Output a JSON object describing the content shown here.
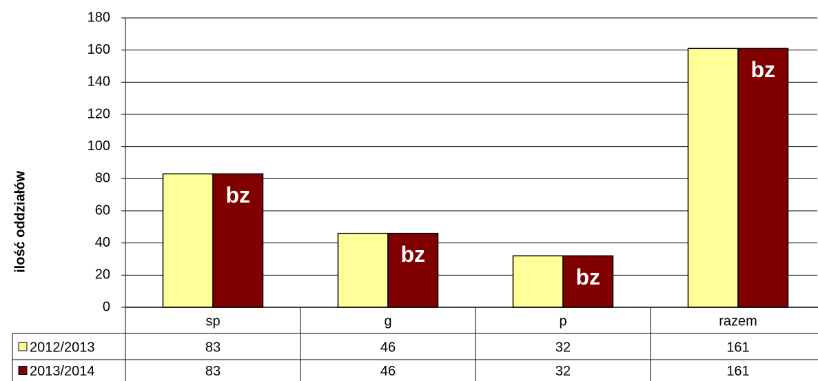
{
  "chart_data": {
    "type": "bar",
    "y_label": "ilość oddziałów",
    "categories": [
      "sp",
      "g",
      "p",
      "razem"
    ],
    "series": [
      {
        "name": "2012/2013",
        "color": "#ffff99",
        "values": [
          83,
          46,
          32,
          161
        ]
      },
      {
        "name": "2013/2014",
        "color": "#800000",
        "values": [
          83,
          46,
          32,
          161
        ],
        "value_labels": [
          "bz",
          "bz",
          "bz",
          "bz"
        ]
      }
    ],
    "ylim": [
      0,
      180
    ],
    "yticks": [
      0,
      20,
      40,
      60,
      80,
      100,
      120,
      140,
      160,
      180
    ],
    "grid": true,
    "legend": "table"
  }
}
